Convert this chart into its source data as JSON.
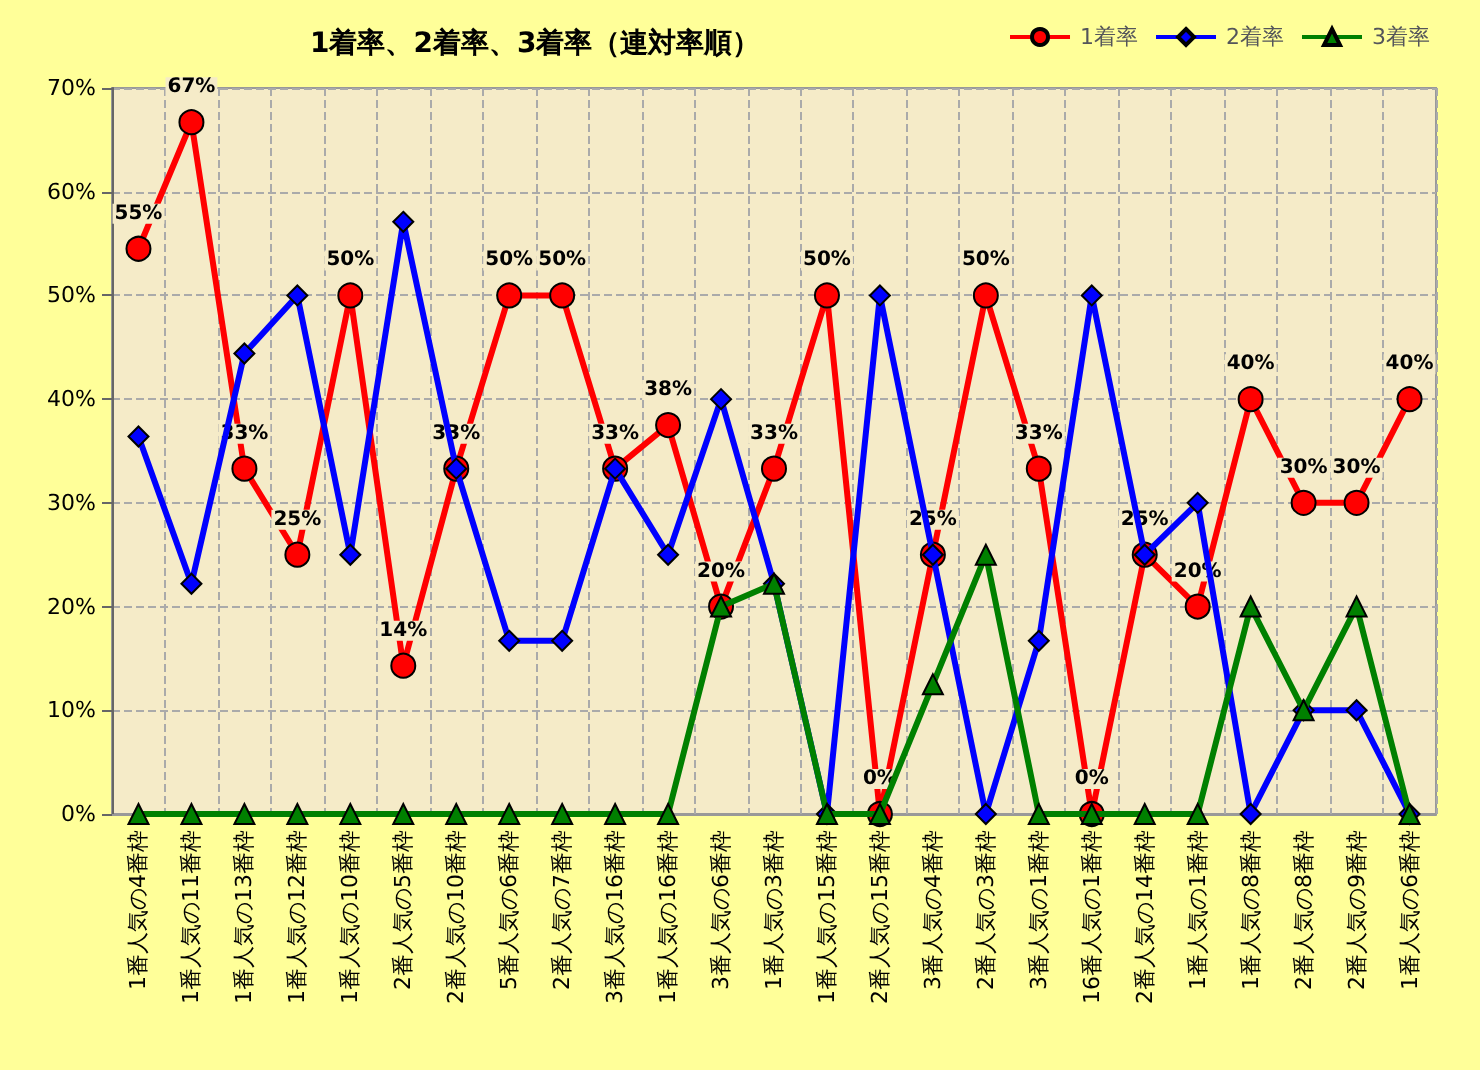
{
  "chart_data": {
    "type": "line",
    "title": "1着率、2着率、3着率（連対率順）",
    "categories": [
      "1番人気の4番枠",
      "1番人気の11番枠",
      "1番人気の13番枠",
      "1番人気の12番枠",
      "1番人気の10番枠",
      "2番人気の5番枠",
      "2番人気の10番枠",
      "5番人気の6番枠",
      "2番人気の7番枠",
      "3番人気の16番枠",
      "1番人気の16番枠",
      "3番人気の6番枠",
      "1番人気の3番枠",
      "1番人気の15番枠",
      "2番人気の15番枠",
      "3番人気の4番枠",
      "2番人気の3番枠",
      "3番人気の1番枠",
      "16番人気の1番枠",
      "2番人気の14番枠",
      "1番人気の1番枠",
      "1番人気の8番枠",
      "2番人気の8番枠",
      "2番人気の9番枠",
      "1番人気の6番枠"
    ],
    "series": [
      {
        "name": "3着率",
        "color": "#008000",
        "marker": "triangle",
        "values": [
          0,
          0,
          0,
          0,
          0,
          0,
          0,
          0,
          0,
          0,
          0,
          20,
          22.2,
          0,
          0,
          12.5,
          25,
          0,
          0,
          0,
          0,
          20,
          10,
          20,
          0
        ]
      },
      {
        "name": "2着率",
        "color": "#0000ff",
        "marker": "diamond",
        "values": [
          36.4,
          22.2,
          44.4,
          50,
          25,
          57.1,
          33.3,
          16.7,
          16.7,
          33.3,
          25,
          40,
          22.2,
          0,
          50,
          25,
          0,
          16.7,
          50,
          25,
          30,
          0,
          10,
          10,
          0
        ]
      },
      {
        "name": "1着率",
        "color": "#ff0000",
        "marker": "circle",
        "values": [
          54.5,
          66.7,
          33.3,
          25,
          50,
          14.3,
          33.3,
          50,
          50,
          33.3,
          37.5,
          20,
          33.3,
          50,
          0,
          25,
          50,
          33.3,
          0,
          25,
          20,
          40,
          30,
          30,
          40
        ],
        "value_labels": [
          "55%",
          "67%",
          "33%",
          "25%",
          "50%",
          "14%",
          "33%",
          "50%",
          "50%",
          "33%",
          "38%",
          "20%",
          "33%",
          "50%",
          "0%",
          "25%",
          "50%",
          "33%",
          "0%",
          "25%",
          "20%",
          "40%",
          "30%",
          "30%",
          "40%"
        ]
      }
    ],
    "ylim": [
      0,
      70
    ],
    "yticks": [
      {
        "value": 0,
        "label": "0%"
      },
      {
        "value": 10,
        "label": "10%"
      },
      {
        "value": 20,
        "label": "20%"
      },
      {
        "value": 30,
        "label": "30%"
      },
      {
        "value": 40,
        "label": "40%"
      },
      {
        "value": 50,
        "label": "50%"
      },
      {
        "value": 60,
        "label": "60%"
      },
      {
        "value": 70,
        "label": "70%"
      }
    ],
    "grid": true,
    "legend": "top right"
  }
}
